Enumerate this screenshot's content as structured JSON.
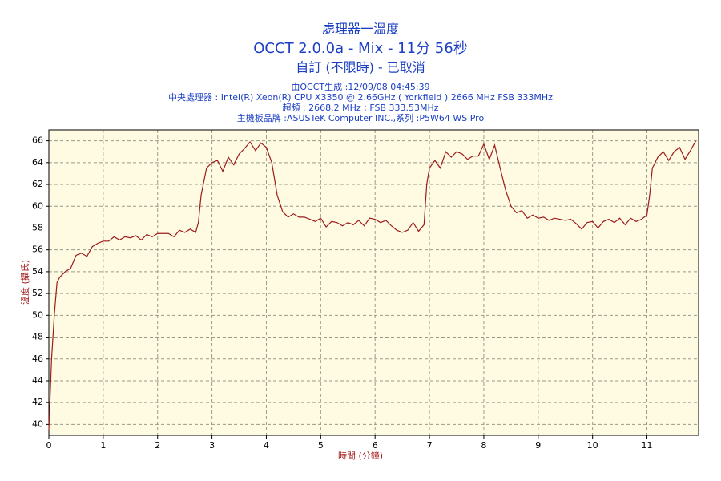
{
  "chart_data": {
    "type": "line",
    "title": "處理器一溫度",
    "subtitle": "OCCT 2.0.0a - Mix - 11分 56秒",
    "subtitle2": "自訂 (不限時) - 已取消",
    "info": [
      "由OCCT生成 :12/09/08 04:45:39",
      "中央處理器 : Intel(R) Xeon(R) CPU X3350 @ 2.66GHz ( Yorkfield ) 2666 MHz FSB 333MHz",
      "超頻 : 2668.2 MHz ; FSB 333.53MHz",
      "主機板品牌 :ASUSTeK Computer INC.,系列 :P5W64 WS Pro"
    ],
    "x_label": "時間 (分鐘)",
    "y_label": "溫度 (攝氏)",
    "color": "#9b1c1c",
    "x": [
      0,
      0.05,
      0.1,
      0.15,
      0.2,
      0.3,
      0.4,
      0.5,
      0.6,
      0.7,
      0.8,
      0.9,
      1.0,
      1.1,
      1.2,
      1.3,
      1.4,
      1.5,
      1.6,
      1.7,
      1.8,
      1.9,
      2.0,
      2.2,
      2.3,
      2.4,
      2.5,
      2.6,
      2.7,
      2.75,
      2.8,
      2.9,
      3.0,
      3.1,
      3.2,
      3.3,
      3.4,
      3.5,
      3.6,
      3.7,
      3.8,
      3.9,
      4.0,
      4.1,
      4.2,
      4.3,
      4.4,
      4.5,
      4.6,
      4.7,
      4.8,
      4.9,
      5.0,
      5.1,
      5.2,
      5.3,
      5.4,
      5.5,
      5.6,
      5.7,
      5.8,
      5.9,
      6.0,
      6.1,
      6.2,
      6.3,
      6.4,
      6.5,
      6.6,
      6.7,
      6.8,
      6.9,
      6.95,
      7.0,
      7.1,
      7.2,
      7.3,
      7.4,
      7.5,
      7.6,
      7.7,
      7.8,
      7.9,
      8.0,
      8.1,
      8.2,
      8.3,
      8.4,
      8.5,
      8.6,
      8.7,
      8.8,
      8.9,
      9.0,
      9.1,
      9.2,
      9.3,
      9.4,
      9.5,
      9.6,
      9.7,
      9.8,
      9.9,
      10.0,
      10.1,
      10.2,
      10.3,
      10.4,
      10.5,
      10.6,
      10.7,
      10.8,
      10.9,
      11.0,
      11.05,
      11.1,
      11.2,
      11.3,
      11.4,
      11.5,
      11.6,
      11.7,
      11.8,
      11.9
    ],
    "values": [
      39.5,
      46,
      50,
      53,
      53.5,
      54,
      54.3,
      55.5,
      55.7,
      55.4,
      56.3,
      56.6,
      56.8,
      56.8,
      57.2,
      56.9,
      57.2,
      57.1,
      57.3,
      56.9,
      57.4,
      57.2,
      57.5,
      57.5,
      57.2,
      57.8,
      57.6,
      57.9,
      57.6,
      58.5,
      61,
      63.5,
      64,
      64.2,
      63.2,
      64.5,
      63.8,
      64.8,
      65.3,
      65.9,
      65.1,
      65.8,
      65.4,
      64,
      61,
      59.5,
      59,
      59.3,
      59,
      59,
      58.8,
      58.6,
      58.9,
      58.1,
      58.6,
      58.5,
      58.2,
      58.5,
      58.3,
      58.7,
      58.2,
      58.9,
      58.8,
      58.5,
      58.7,
      58.2,
      57.8,
      57.6,
      57.8,
      58.5,
      57.7,
      58.3,
      62,
      63.5,
      64.2,
      63.5,
      65,
      64.5,
      65,
      64.8,
      64.3,
      64.6,
      64.6,
      65.7,
      64.3,
      65.6,
      63.5,
      61.5,
      60,
      59.4,
      59.6,
      58.9,
      59.2,
      58.9,
      59,
      58.7,
      58.9,
      58.8,
      58.7,
      58.8,
      58.4,
      57.9,
      58.5,
      58.6,
      58,
      58.6,
      58.8,
      58.5,
      58.9,
      58.3,
      58.9,
      58.6,
      58.8,
      59.2,
      61,
      63.5,
      64.5,
      65,
      64.2,
      65,
      65.4,
      64.3,
      65.1,
      66
    ],
    "xlim": [
      0,
      11.95
    ],
    "ylim": [
      39,
      67
    ],
    "xticks": [
      0,
      1,
      2,
      3,
      4,
      5,
      6,
      7,
      8,
      9,
      10,
      11
    ],
    "yticks": [
      40,
      42,
      44,
      46,
      48,
      50,
      52,
      54,
      56,
      58,
      60,
      62,
      64,
      66
    ],
    "grid": true
  }
}
